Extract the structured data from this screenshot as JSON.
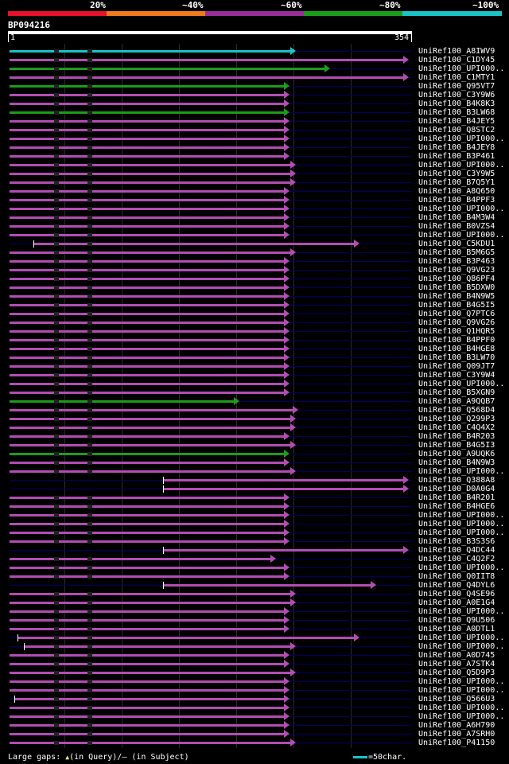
{
  "header": {
    "percent_labels": [
      "20%",
      "~40%",
      "~60%",
      "~80%",
      "~100%"
    ],
    "color_scale": [
      "#e8102a",
      "#f07a1e",
      "#9a2e9a",
      "#1c9c1c",
      "#19c3c8"
    ]
  },
  "query": {
    "id": "BP094216",
    "start_label": "1",
    "end_label": "354",
    "length": 354
  },
  "hits": [
    {
      "name": "UniRef100_A8IWV9",
      "color": "#19c3c8",
      "start": 1,
      "end": 254
    },
    {
      "name": "UniRef100_C1DY45",
      "color": "#b24db2",
      "start": 1,
      "end": 354
    },
    {
      "name": "UniRef100_UPI000..",
      "color": "#1c9c1c",
      "start": 1,
      "end": 284
    },
    {
      "name": "UniRef100_C1MTY1",
      "color": "#b24db2",
      "start": 1,
      "end": 354
    },
    {
      "name": "UniRef100_Q95VT7",
      "color": "#1c9c1c",
      "start": 1,
      "end": 248
    },
    {
      "name": "UniRef100_C3Y9W6",
      "color": "#b24db2",
      "start": 1,
      "end": 248
    },
    {
      "name": "UniRef100_B4K8K3",
      "color": "#b24db2",
      "start": 1,
      "end": 248
    },
    {
      "name": "UniRef100_B3LW68",
      "color": "#1c9c1c",
      "start": 1,
      "end": 248
    },
    {
      "name": "UniRef100_B4JEY5",
      "color": "#b24db2",
      "start": 1,
      "end": 248
    },
    {
      "name": "UniRef100_Q8STC2",
      "color": "#b24db2",
      "start": 1,
      "end": 248
    },
    {
      "name": "UniRef100_UPI000..",
      "color": "#b24db2",
      "start": 1,
      "end": 248
    },
    {
      "name": "UniRef100_B4JEY8",
      "color": "#b24db2",
      "start": 1,
      "end": 248
    },
    {
      "name": "UniRef100_B3P461",
      "color": "#b24db2",
      "start": 1,
      "end": 248
    },
    {
      "name": "UniRef100_UPI000..",
      "color": "#b24db2",
      "start": 1,
      "end": 254
    },
    {
      "name": "UniRef100_C3Y9W5",
      "color": "#b24db2",
      "start": 1,
      "end": 254
    },
    {
      "name": "UniRef100_B7Q5Y1",
      "color": "#b24db2",
      "start": 1,
      "end": 254
    },
    {
      "name": "UniRef100_A8Q650",
      "color": "#b24db2",
      "start": 1,
      "end": 248
    },
    {
      "name": "UniRef100_B4PPF3",
      "color": "#b24db2",
      "start": 1,
      "end": 248
    },
    {
      "name": "UniRef100_UPI000..",
      "color": "#b24db2",
      "start": 1,
      "end": 248
    },
    {
      "name": "UniRef100_B4M3W4",
      "color": "#b24db2",
      "start": 1,
      "end": 248
    },
    {
      "name": "UniRef100_B0VZS4",
      "color": "#b24db2",
      "start": 1,
      "end": 248
    },
    {
      "name": "UniRef100_UPI000..",
      "color": "#b24db2",
      "start": 1,
      "end": 248
    },
    {
      "name": "UniRef100_C5KDU1",
      "color": "#b24db2",
      "start": 22,
      "end": 310
    },
    {
      "name": "UniRef100_B5M6G5",
      "color": "#b24db2",
      "start": 1,
      "end": 254
    },
    {
      "name": "UniRef100_B3P463",
      "color": "#b24db2",
      "start": 1,
      "end": 248
    },
    {
      "name": "UniRef100_Q9VG23",
      "color": "#b24db2",
      "start": 1,
      "end": 248
    },
    {
      "name": "UniRef100_Q86PF4",
      "color": "#b24db2",
      "start": 1,
      "end": 248
    },
    {
      "name": "UniRef100_B5DXW0",
      "color": "#b24db2",
      "start": 1,
      "end": 248
    },
    {
      "name": "UniRef100_B4N9W5",
      "color": "#b24db2",
      "start": 1,
      "end": 248
    },
    {
      "name": "UniRef100_B4G5I5",
      "color": "#b24db2",
      "start": 1,
      "end": 248
    },
    {
      "name": "UniRef100_Q7PTC6",
      "color": "#b24db2",
      "start": 1,
      "end": 248
    },
    {
      "name": "UniRef100_Q9VG26",
      "color": "#b24db2",
      "start": 1,
      "end": 248
    },
    {
      "name": "UniRef100_Q1HQR5",
      "color": "#b24db2",
      "start": 1,
      "end": 248
    },
    {
      "name": "UniRef100_B4PPF0",
      "color": "#b24db2",
      "start": 1,
      "end": 248
    },
    {
      "name": "UniRef100_B4HGE8",
      "color": "#b24db2",
      "start": 1,
      "end": 248
    },
    {
      "name": "UniRef100_B3LW70",
      "color": "#b24db2",
      "start": 1,
      "end": 248
    },
    {
      "name": "UniRef100_Q09JT7",
      "color": "#b24db2",
      "start": 1,
      "end": 248
    },
    {
      "name": "UniRef100_C3Y9W4",
      "color": "#b24db2",
      "start": 1,
      "end": 248
    },
    {
      "name": "UniRef100_UPI000..",
      "color": "#b24db2",
      "start": 1,
      "end": 248
    },
    {
      "name": "UniRef100_B5XGN9",
      "color": "#b24db2",
      "start": 1,
      "end": 248
    },
    {
      "name": "UniRef100_A9QQB7",
      "color": "#1c9c1c",
      "start": 1,
      "end": 204
    },
    {
      "name": "UniRef100_Q568D4",
      "color": "#b24db2",
      "start": 1,
      "end": 256
    },
    {
      "name": "UniRef100_Q299P3",
      "color": "#b24db2",
      "start": 1,
      "end": 254
    },
    {
      "name": "UniRef100_C4Q4X2",
      "color": "#b24db2",
      "start": 1,
      "end": 254
    },
    {
      "name": "UniRef100_B4R203",
      "color": "#b24db2",
      "start": 1,
      "end": 248
    },
    {
      "name": "UniRef100_B4G5I3",
      "color": "#b24db2",
      "start": 1,
      "end": 254
    },
    {
      "name": "UniRef100_A9UQK6",
      "color": "#1c9c1c",
      "start": 1,
      "end": 248
    },
    {
      "name": "UniRef100_B4N9W3",
      "color": "#b24db2",
      "start": 1,
      "end": 248
    },
    {
      "name": "UniRef100_UPI000..",
      "color": "#b24db2",
      "start": 1,
      "end": 254
    },
    {
      "name": "UniRef100_Q388A8",
      "color": "#b24db2",
      "start": 137,
      "end": 354
    },
    {
      "name": "UniRef100_D0A0G4",
      "color": "#b24db2",
      "start": 137,
      "end": 354
    },
    {
      "name": "UniRef100_B4R201",
      "color": "#b24db2",
      "start": 1,
      "end": 248
    },
    {
      "name": "UniRef100_B4HGE6",
      "color": "#b24db2",
      "start": 1,
      "end": 248
    },
    {
      "name": "UniRef100_UPI000..",
      "color": "#b24db2",
      "start": 1,
      "end": 248
    },
    {
      "name": "UniRef100_UPI000..",
      "color": "#b24db2",
      "start": 1,
      "end": 248
    },
    {
      "name": "UniRef100_UPI000..",
      "color": "#b24db2",
      "start": 1,
      "end": 248
    },
    {
      "name": "UniRef100_B3S3S6",
      "color": "#b24db2",
      "start": 1,
      "end": 248
    },
    {
      "name": "UniRef100_Q4DC44",
      "color": "#b24db2",
      "start": 137,
      "end": 354
    },
    {
      "name": "UniRef100_C4Q2F2",
      "color": "#b24db2",
      "start": 1,
      "end": 236
    },
    {
      "name": "UniRef100_UPI000..",
      "color": "#b24db2",
      "start": 1,
      "end": 248
    },
    {
      "name": "UniRef100_Q0IIT8",
      "color": "#b24db2",
      "start": 1,
      "end": 248
    },
    {
      "name": "UniRef100_Q4DYL6",
      "color": "#b24db2",
      "start": 137,
      "end": 325
    },
    {
      "name": "UniRef100_Q4SE96",
      "color": "#b24db2",
      "start": 1,
      "end": 254
    },
    {
      "name": "UniRef100_A0E1G4",
      "color": "#b24db2",
      "start": 1,
      "end": 254
    },
    {
      "name": "UniRef100_UPI000..",
      "color": "#b24db2",
      "start": 1,
      "end": 248
    },
    {
      "name": "UniRef100_Q9U506",
      "color": "#b24db2",
      "start": 1,
      "end": 248
    },
    {
      "name": "UniRef100_A0DTL1",
      "color": "#b24db2",
      "start": 1,
      "end": 248
    },
    {
      "name": "UniRef100_UPI000..",
      "color": "#b24db2",
      "start": 8,
      "end": 310
    },
    {
      "name": "UniRef100_UPI000..",
      "color": "#b24db2",
      "start": 14,
      "end": 254
    },
    {
      "name": "UniRef100_A0D745",
      "color": "#b24db2",
      "start": 1,
      "end": 248
    },
    {
      "name": "UniRef100_A7STK4",
      "color": "#b24db2",
      "start": 1,
      "end": 248
    },
    {
      "name": "UniRef100_Q5D9P3",
      "color": "#b24db2",
      "start": 1,
      "end": 254
    },
    {
      "name": "UniRef100_UPI000..",
      "color": "#b24db2",
      "start": 1,
      "end": 248
    },
    {
      "name": "UniRef100_UPI000..",
      "color": "#b24db2",
      "start": 1,
      "end": 248
    },
    {
      "name": "UniRef100_Q566U3",
      "color": "#b24db2",
      "start": 5,
      "end": 248
    },
    {
      "name": "UniRef100_UPI000..",
      "color": "#b24db2",
      "start": 1,
      "end": 248
    },
    {
      "name": "UniRef100_UPI000..",
      "color": "#b24db2",
      "start": 1,
      "end": 248
    },
    {
      "name": "UniRef100_A6H790",
      "color": "#b24db2",
      "start": 1,
      "end": 248
    },
    {
      "name": "UniRef100_A7SRH0",
      "color": "#b24db2",
      "start": 1,
      "end": 248
    },
    {
      "name": "UniRef100_P41150",
      "color": "#b24db2",
      "start": 1,
      "end": 254
    }
  ],
  "footer": {
    "large_gaps_prefix": "Large gaps: ",
    "query_marker": "▲",
    "query_text": "(in Query)/",
    "subject_marker": "–",
    "subject_text": " (in Subject)",
    "scale_text": "=50char."
  }
}
